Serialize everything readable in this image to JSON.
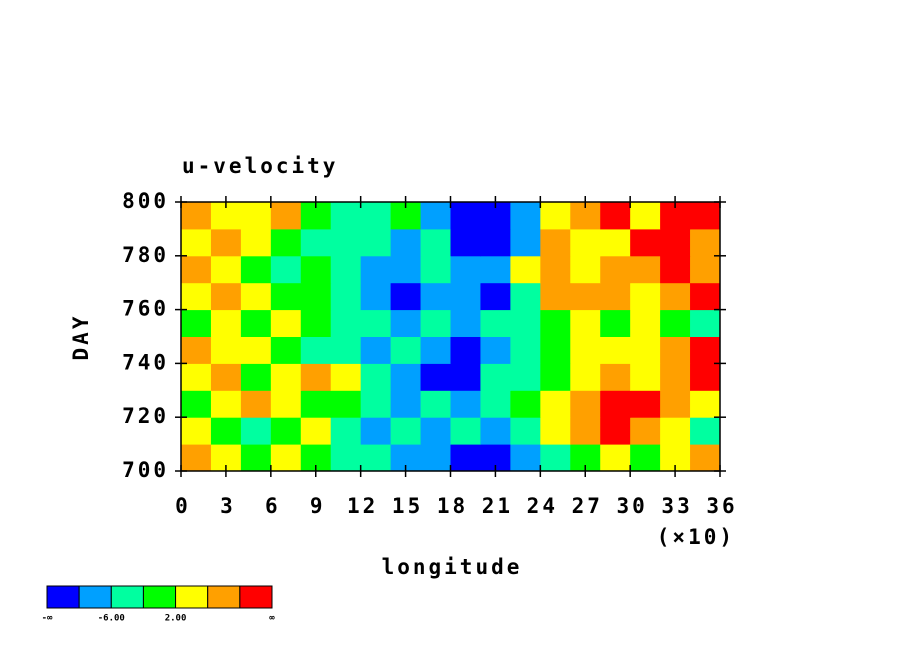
{
  "chart_data": {
    "type": "heatmap",
    "title": "u-velocity",
    "xlabel": "longitude",
    "ylabel": "DAY",
    "x_scale_label": "(×10)",
    "xlim": [
      0,
      36
    ],
    "xticks": [
      0,
      3,
      6,
      9,
      12,
      15,
      18,
      21,
      24,
      27,
      30,
      33,
      36
    ],
    "ylim": [
      700,
      800
    ],
    "yticks": [
      700,
      720,
      740,
      760,
      780,
      800
    ],
    "x": [
      1,
      3,
      5,
      7,
      9,
      11,
      13,
      15,
      17,
      19,
      21,
      23,
      25,
      27,
      29,
      31,
      33,
      35
    ],
    "y": [
      705,
      715,
      725,
      735,
      745,
      755,
      765,
      775,
      785,
      795
    ],
    "z": [
      [
        8,
        4,
        0,
        4,
        0,
        -4,
        -4,
        -8,
        -8,
        -12,
        -12,
        -8,
        -4,
        0,
        4,
        0,
        4,
        8
      ],
      [
        4,
        0,
        -4,
        0,
        4,
        -4,
        -8,
        -4,
        -8,
        -4,
        -8,
        -4,
        4,
        8,
        12,
        8,
        4,
        -4
      ],
      [
        0,
        4,
        8,
        4,
        0,
        0,
        -4,
        -8,
        -4,
        -8,
        -4,
        0,
        4,
        8,
        12,
        12,
        8,
        4
      ],
      [
        4,
        8,
        0,
        4,
        8,
        4,
        -4,
        -8,
        -12,
        -12,
        -4,
        -4,
        0,
        4,
        8,
        4,
        8,
        12
      ],
      [
        8,
        4,
        4,
        0,
        -4,
        -4,
        -8,
        -4,
        -8,
        -12,
        -8,
        -4,
        0,
        4,
        4,
        4,
        8,
        12
      ],
      [
        0,
        4,
        0,
        4,
        0,
        -4,
        -4,
        -8,
        -4,
        -8,
        -4,
        -4,
        0,
        4,
        0,
        4,
        0,
        -4
      ],
      [
        4,
        8,
        4,
        0,
        0,
        -4,
        -8,
        -12,
        -8,
        -8,
        -12,
        -4,
        8,
        8,
        8,
        4,
        8,
        12
      ],
      [
        8,
        4,
        0,
        -4,
        0,
        -4,
        -8,
        -8,
        -4,
        -8,
        -8,
        4,
        8,
        4,
        8,
        8,
        12,
        8
      ],
      [
        4,
        8,
        4,
        0,
        -4,
        -4,
        -4,
        -8,
        -4,
        -12,
        -12,
        -8,
        8,
        4,
        4,
        12,
        12,
        8
      ],
      [
        8,
        4,
        4,
        8,
        0,
        -4,
        -4,
        0,
        -8,
        -12,
        -12,
        -8,
        4,
        8,
        12,
        4,
        12,
        12
      ]
    ],
    "colorbar": {
      "colors": [
        "#0000ff",
        "#00a0ff",
        "#00ffa0",
        "#00ff00",
        "#ffff00",
        "#ffa000",
        "#ff0000"
      ],
      "levels": [
        -10,
        -6,
        -2,
        2,
        6,
        10
      ],
      "ticks": [
        {
          "value": -6,
          "label": "-6.00"
        },
        {
          "value": 2,
          "label": "2.00"
        }
      ],
      "ends": [
        "-∞",
        "∞"
      ]
    }
  }
}
